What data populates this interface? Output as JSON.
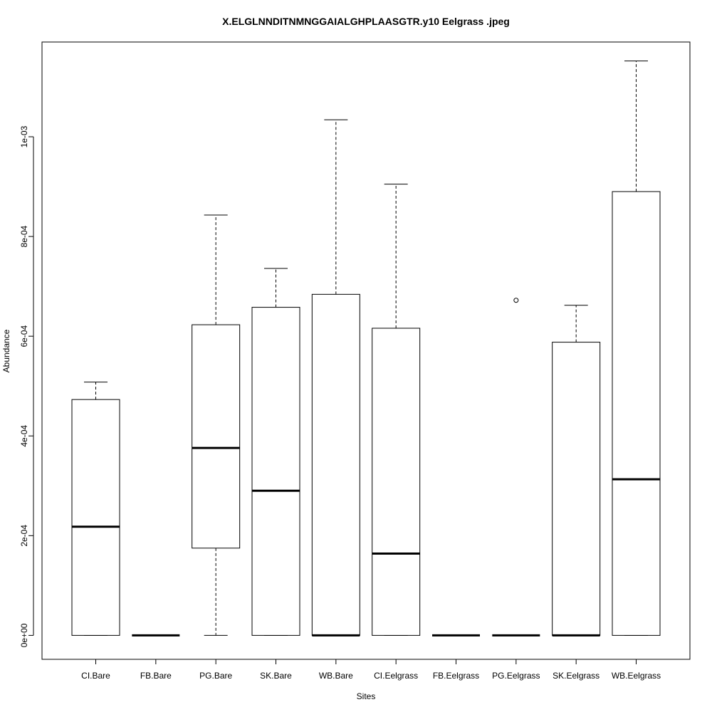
{
  "chart_data": {
    "type": "boxplot",
    "title": "X.ELGLNNDITNMNGGAIALGHPLAASGTR.y10 Eelgrass .jpeg",
    "xlabel": "Sites",
    "ylabel": "Abundance",
    "categories": [
      "CI.Bare",
      "FB.Bare",
      "PG.Bare",
      "SK.Bare",
      "WB.Bare",
      "CI.Eelgrass",
      "FB.Eelgrass",
      "PG.Eelgrass",
      "SK.Eelgrass",
      "WB.Eelgrass"
    ],
    "yticks": [
      0,
      0.0002,
      0.0004,
      0.0006,
      0.0008,
      0.001
    ],
    "ytick_labels": [
      "0e+00",
      "2e-04",
      "4e-04",
      "6e-04",
      "8e-04",
      "1e-03"
    ],
    "ylim": [
      -4.8e-05,
      0.00119
    ],
    "boxes": [
      {
        "whisker_low": 0,
        "q1": 0,
        "median": 0.000218,
        "q3": 0.000473,
        "whisker_high": 0.000508,
        "outliers": []
      },
      {
        "whisker_low": 0,
        "q1": 0,
        "median": 0,
        "q3": 0,
        "whisker_high": 0,
        "outliers": []
      },
      {
        "whisker_low": 0,
        "q1": 0.000175,
        "median": 0.000376,
        "q3": 0.000623,
        "whisker_high": 0.000843,
        "outliers": []
      },
      {
        "whisker_low": 0,
        "q1": 0,
        "median": 0.00029,
        "q3": 0.000658,
        "whisker_high": 0.000736,
        "outliers": []
      },
      {
        "whisker_low": 0,
        "q1": 0,
        "median": 0,
        "q3": 0.000684,
        "whisker_high": 0.001034,
        "outliers": []
      },
      {
        "whisker_low": 0,
        "q1": 0,
        "median": 0.000164,
        "q3": 0.000616,
        "whisker_high": 0.000905,
        "outliers": []
      },
      {
        "whisker_low": 0,
        "q1": 0,
        "median": 0,
        "q3": 0,
        "whisker_high": 0,
        "outliers": []
      },
      {
        "whisker_low": 0,
        "q1": 0,
        "median": 0,
        "q3": 0,
        "whisker_high": 0,
        "outliers": [
          0.000672
        ]
      },
      {
        "whisker_low": 0,
        "q1": 0,
        "median": 0,
        "q3": 0.000588,
        "whisker_high": 0.000662,
        "outliers": []
      },
      {
        "whisker_low": 0,
        "q1": 0,
        "median": 0.000313,
        "q3": 0.00089,
        "whisker_high": 0.001152,
        "outliers": []
      }
    ],
    "grid": false,
    "legend": "none"
  }
}
